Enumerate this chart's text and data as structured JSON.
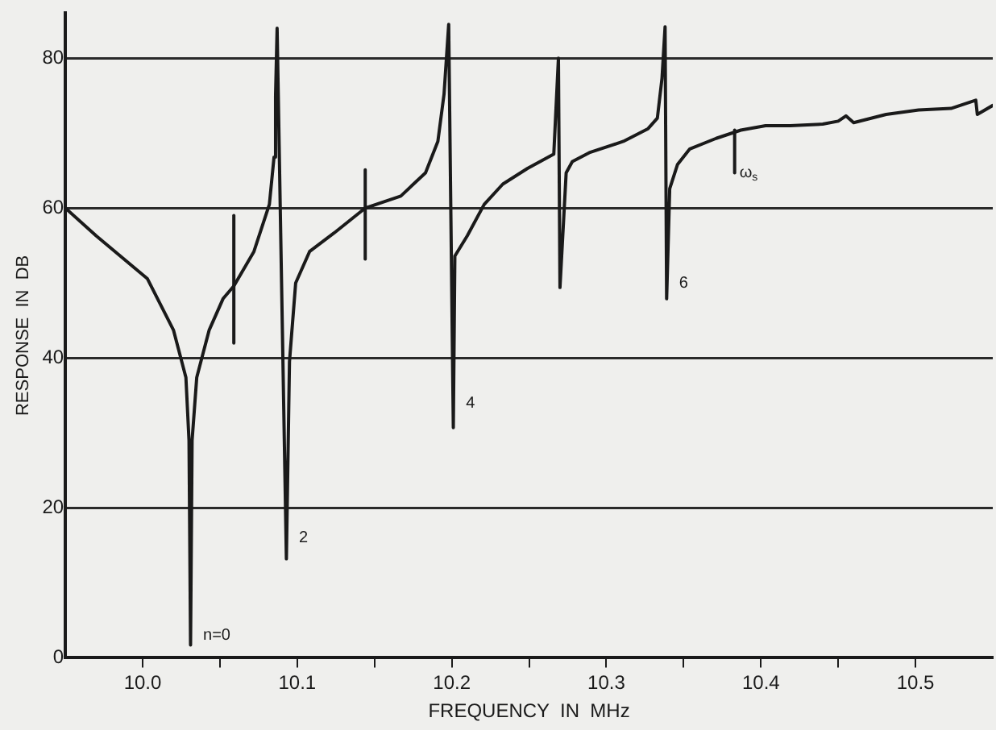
{
  "chart_data": {
    "type": "line",
    "xlabel": "FREQUENCY  IN  MHz",
    "ylabel": "RESPONSE  IN  DB",
    "xlim": [
      9.95,
      10.55
    ],
    "ylim": [
      0,
      86
    ],
    "xticks": [
      {
        "value": 10.0,
        "label": "10.0"
      },
      {
        "value": 10.05,
        "label": null
      },
      {
        "value": 10.1,
        "label": "10.1"
      },
      {
        "value": 10.15,
        "label": null
      },
      {
        "value": 10.2,
        "label": "10.2"
      },
      {
        "value": 10.25,
        "label": null
      },
      {
        "value": 10.3,
        "label": "10.3"
      },
      {
        "value": 10.35,
        "label": null
      },
      {
        "value": 10.4,
        "label": "10.4"
      },
      {
        "value": 10.45,
        "label": null
      },
      {
        "value": 10.5,
        "label": "10.5"
      }
    ],
    "yticks": [
      0,
      20,
      40,
      60,
      80
    ],
    "grid": "y",
    "marker": "none",
    "line_style": "solid",
    "legend": false,
    "series": [
      {
        "color": "#1a1a1a",
        "x": [
          9.95,
          9.97,
          10.003,
          10.02,
          10.028,
          10.03,
          10.031,
          10.032,
          10.035,
          10.043,
          10.052,
          10.059,
          10.072,
          10.082,
          10.085,
          10.086,
          10.087,
          10.093,
          10.095,
          10.099,
          10.108,
          10.124,
          10.144,
          10.167,
          10.183,
          10.191,
          10.195,
          10.198,
          10.201,
          10.202,
          10.21,
          10.221,
          10.233,
          10.249,
          10.266,
          10.269,
          10.27,
          10.274,
          10.278,
          10.289,
          10.311,
          10.327,
          10.333,
          10.336,
          10.338,
          10.339,
          10.341,
          10.346,
          10.354,
          10.371,
          10.387,
          10.403,
          10.419,
          10.44,
          10.45,
          10.455,
          10.46,
          10.481,
          10.502,
          10.523,
          10.539,
          10.54,
          10.55
        ],
        "values": [
          60,
          56.3,
          50.6,
          43.7,
          37.4,
          29,
          1.7,
          29,
          37.4,
          43.7,
          47.9,
          49.6,
          54.2,
          60.5,
          66.8,
          75,
          84,
          13.2,
          39.5,
          50,
          54.2,
          56.7,
          60,
          61.6,
          64.7,
          68.9,
          75.2,
          84.5,
          30.7,
          53.6,
          56.3,
          60.5,
          63.2,
          65.3,
          67.2,
          80,
          49.4,
          64.7,
          66.2,
          67.4,
          68.9,
          70.6,
          72,
          77.3,
          84.2,
          47.9,
          62.6,
          65.8,
          67.9,
          69.3,
          70.4,
          71,
          71,
          71.2,
          71.6,
          72.3,
          71.4,
          72.5,
          73.1,
          73.3,
          74.4,
          72.5,
          73.7
        ]
      },
      {
        "color": "#1a1a1a",
        "x": [
          10.059,
          10.059
        ],
        "values": [
          42,
          59
        ]
      },
      {
        "color": "#1a1a1a",
        "x": [
          10.144,
          10.144
        ],
        "values": [
          53.2,
          65.1
        ]
      },
      {
        "color": "#1a1a1a",
        "x": [
          10.383,
          10.383
        ],
        "values": [
          64.7,
          70.4
        ]
      }
    ],
    "annotations": [
      {
        "text": "n=0",
        "x": 10.036,
        "y": 3
      },
      {
        "text": "2",
        "x": 10.098,
        "y": 16
      },
      {
        "text": "4",
        "x": 10.206,
        "y": 34
      },
      {
        "text": "6",
        "x": 10.344,
        "y": 50
      },
      {
        "text": "ω$_{s}$",
        "x": 10.383,
        "y": 64.7
      }
    ]
  }
}
